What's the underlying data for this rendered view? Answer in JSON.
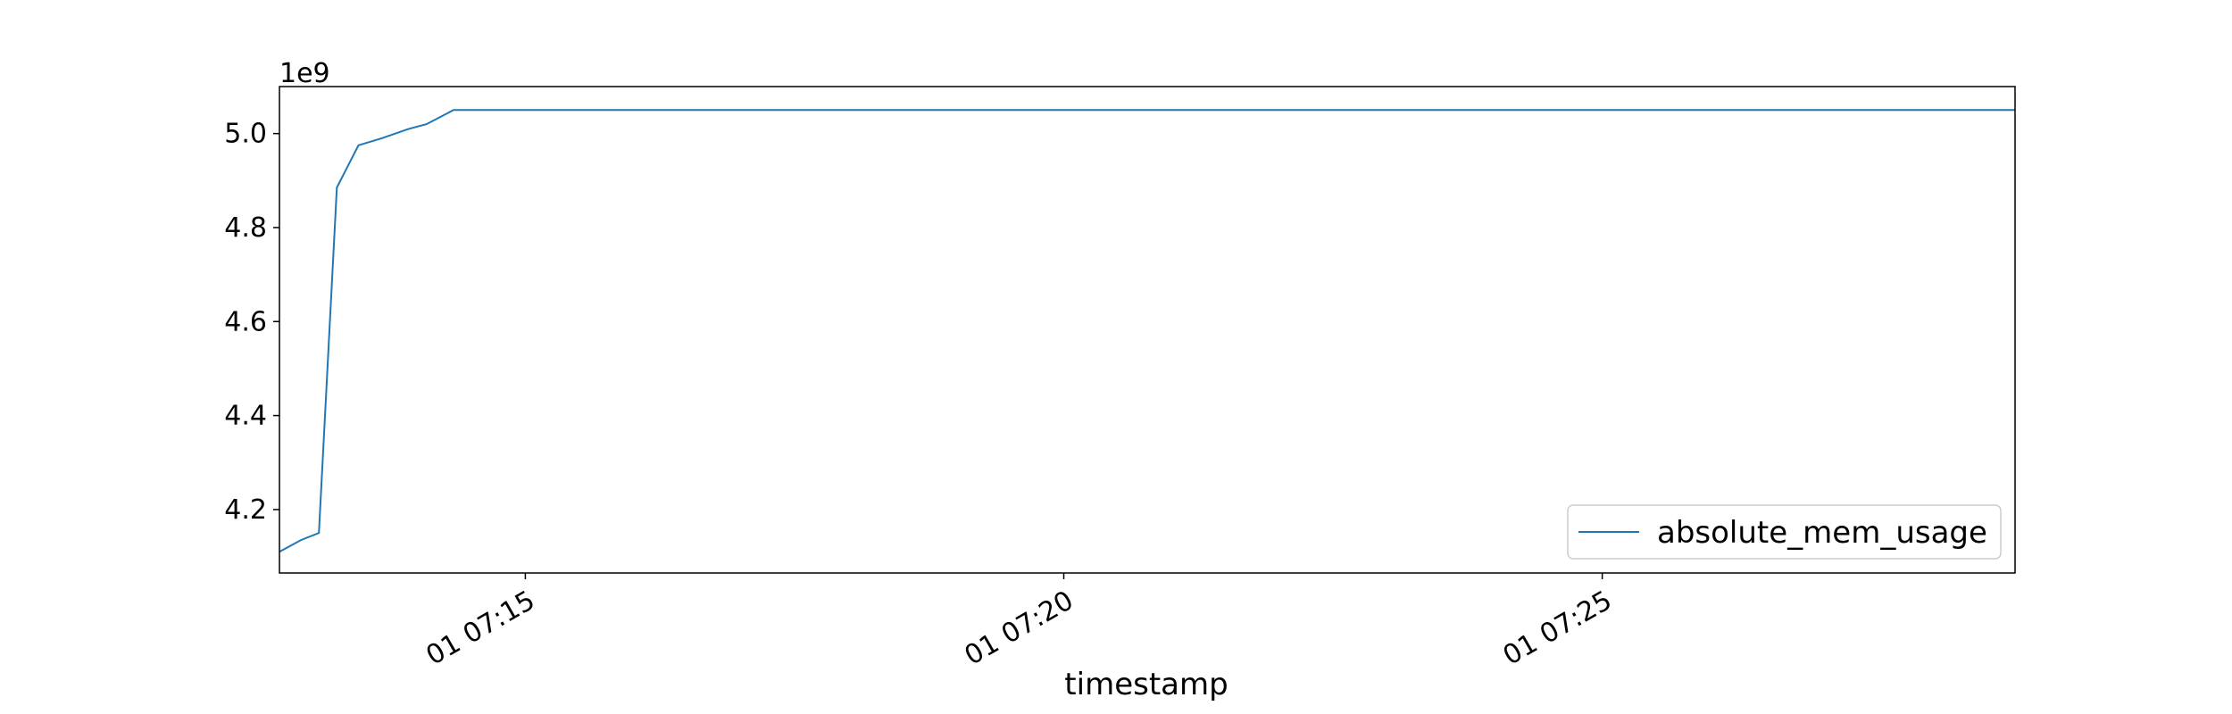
{
  "chart_data": {
    "type": "line",
    "title": "",
    "xlabel": "timestamp",
    "ylabel": "",
    "y_offset_text": "1e9",
    "y_scale": 1000000000,
    "xlim": [
      "07:12:43",
      "07:28:50"
    ],
    "ylim": [
      4.065,
      5.1
    ],
    "y_ticks": [
      4.2,
      4.4,
      4.6,
      4.8,
      5.0
    ],
    "y_tick_labels": [
      "4.2",
      "4.4",
      "4.6",
      "4.8",
      "5.0"
    ],
    "x_ticks": [
      "07:15:00",
      "07:20:00",
      "07:25:00"
    ],
    "x_tick_labels": [
      "01 07:15",
      "01 07:20",
      "01 07:25"
    ],
    "grid": false,
    "legend_position": "lower-right",
    "series": [
      {
        "name": "absolute_mem_usage",
        "color": "#1f77b4",
        "x": [
          "07:12:43",
          "07:12:55",
          "07:13:05",
          "07:13:15",
          "07:13:27",
          "07:13:40",
          "07:13:55",
          "07:14:05",
          "07:14:20",
          "07:14:34",
          "07:14:48",
          "07:15:00",
          "07:28:50"
        ],
        "y": [
          4.11,
          4.135,
          4.15,
          4.885,
          4.975,
          4.99,
          5.01,
          5.02,
          5.05,
          5.05,
          5.05,
          5.05,
          5.05
        ]
      }
    ]
  }
}
